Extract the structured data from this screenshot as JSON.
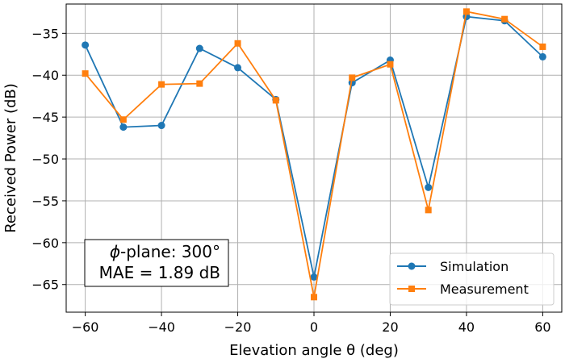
{
  "chart_data": {
    "type": "line",
    "xlabel": "Elevation angle θ (deg)",
    "ylabel": "Received Power (dB)",
    "xlim": [
      -65,
      65
    ],
    "ylim": [
      -68.3,
      -31.5
    ],
    "xticks": [
      -60,
      -40,
      -20,
      0,
      20,
      40,
      60
    ],
    "yticks": [
      -65,
      -60,
      -55,
      -50,
      -45,
      -40,
      -35
    ],
    "xtick_labels": [
      "−60",
      "−40",
      "−20",
      "0",
      "20",
      "40",
      "60"
    ],
    "ytick_labels": [
      "−65",
      "−60",
      "−55",
      "−50",
      "−45",
      "−40",
      "−35"
    ],
    "grid": true,
    "legend_position": "bottom-right",
    "x": [
      -60,
      -50,
      -40,
      -30,
      -20,
      -10,
      0,
      10,
      20,
      30,
      40,
      50,
      60
    ],
    "series": [
      {
        "name": "Simulation",
        "color": "#1f77b4",
        "marker": "circle",
        "values": [
          -36.4,
          -46.2,
          -46.0,
          -36.8,
          -39.1,
          -42.9,
          -64.1,
          -40.9,
          -38.2,
          -53.4,
          -33.0,
          -33.5,
          -37.8
        ]
      },
      {
        "name": "Measurement",
        "color": "#ff7f0e",
        "marker": "square",
        "values": [
          -39.8,
          -45.3,
          -41.1,
          -41.0,
          -36.2,
          -43.0,
          -66.5,
          -40.3,
          -38.7,
          -56.1,
          -32.4,
          -33.3,
          -36.6
        ]
      }
    ],
    "annotation": {
      "line1_symbol": "ϕ",
      "line1_text": "-plane: 300°",
      "line2": "MAE = 1.89 dB"
    }
  }
}
